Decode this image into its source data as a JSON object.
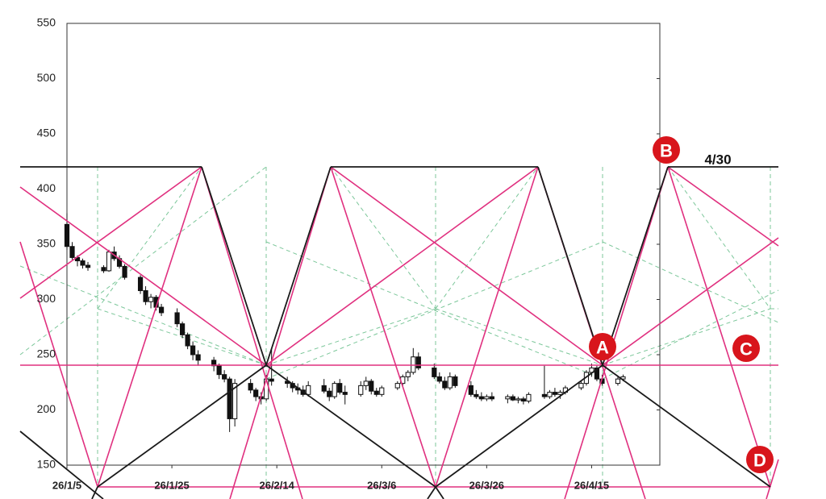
{
  "chart_data": {
    "type": "candlestick",
    "x": [
      "26/1/5",
      "26/1/6",
      "26/1/7",
      "26/1/8",
      "26/1/9",
      "26/1/12",
      "26/1/13",
      "26/1/14",
      "26/1/15",
      "26/1/16",
      "26/1/19",
      "26/1/20",
      "26/1/21",
      "26/1/22",
      "26/1/23",
      "26/1/26",
      "26/1/27",
      "26/1/28",
      "26/1/29",
      "26/1/30",
      "26/2/2",
      "26/2/3",
      "26/2/4",
      "26/2/5",
      "26/2/6",
      "26/2/9",
      "26/2/10",
      "26/2/11",
      "26/2/12",
      "26/2/13",
      "26/2/16",
      "26/2/17",
      "26/2/18",
      "26/2/19",
      "26/2/20",
      "26/2/23",
      "26/2/24",
      "26/2/25",
      "26/2/26",
      "26/2/27",
      "26/3/2",
      "26/3/3",
      "26/3/4",
      "26/3/5",
      "26/3/6",
      "26/3/9",
      "26/3/10",
      "26/3/11",
      "26/3/12",
      "26/3/13",
      "26/3/16",
      "26/3/17",
      "26/3/18",
      "26/3/19",
      "26/3/20",
      "26/3/23",
      "26/3/24",
      "26/3/25",
      "26/3/26",
      "26/3/27",
      "26/3/30",
      "26/3/31",
      "26/4/1",
      "26/4/2",
      "26/4/3",
      "26/4/6",
      "26/4/7",
      "26/4/8",
      "26/4/9",
      "26/4/10",
      "26/4/13",
      "26/4/14",
      "26/4/15",
      "26/4/16",
      "26/4/17",
      "26/4/20",
      "26/4/21"
    ],
    "ohlc": [
      [
        368,
        378,
        345,
        348
      ],
      [
        348,
        352,
        336,
        338
      ],
      [
        338,
        340,
        330,
        335
      ],
      [
        335,
        337,
        328,
        331
      ],
      [
        331,
        334,
        326,
        329
      ],
      [
        329,
        331,
        324,
        326
      ],
      [
        326,
        345,
        325,
        343
      ],
      [
        343,
        348,
        335,
        337
      ],
      [
        337,
        340,
        328,
        330
      ],
      [
        330,
        332,
        318,
        320
      ],
      [
        320,
        322,
        305,
        308
      ],
      [
        308,
        312,
        295,
        298
      ],
      [
        298,
        305,
        292,
        302
      ],
      [
        302,
        304,
        290,
        293
      ],
      [
        293,
        296,
        285,
        288
      ],
      [
        288,
        292,
        275,
        278
      ],
      [
        278,
        280,
        265,
        268
      ],
      [
        268,
        270,
        255,
        258
      ],
      [
        258,
        262,
        245,
        250
      ],
      [
        250,
        254,
        240,
        245
      ],
      [
        245,
        248,
        235,
        240
      ],
      [
        240,
        242,
        228,
        232
      ],
      [
        232,
        236,
        225,
        228
      ],
      [
        228,
        230,
        180,
        192
      ],
      [
        192,
        228,
        185,
        224
      ],
      [
        224,
        228,
        215,
        218
      ],
      [
        218,
        220,
        208,
        212
      ],
      [
        212,
        216,
        205,
        210
      ],
      [
        210,
        232,
        208,
        228
      ],
      [
        228,
        255,
        222,
        226
      ],
      [
        226,
        230,
        220,
        224
      ],
      [
        224,
        226,
        216,
        220
      ],
      [
        220,
        224,
        214,
        218
      ],
      [
        218,
        222,
        212,
        214
      ],
      [
        214,
        226,
        212,
        222
      ],
      [
        222,
        228,
        215,
        217
      ],
      [
        217,
        220,
        208,
        212
      ],
      [
        212,
        226,
        210,
        224
      ],
      [
        224,
        228,
        214,
        216
      ],
      [
        216,
        222,
        205,
        214
      ],
      [
        214,
        226,
        212,
        222
      ],
      [
        222,
        230,
        218,
        226
      ],
      [
        226,
        228,
        214,
        217
      ],
      [
        217,
        220,
        212,
        214
      ],
      [
        214,
        222,
        212,
        220
      ],
      [
        220,
        226,
        218,
        224
      ],
      [
        224,
        232,
        222,
        230
      ],
      [
        230,
        236,
        226,
        234
      ],
      [
        234,
        256,
        232,
        248
      ],
      [
        248,
        252,
        236,
        238
      ],
      [
        238,
        242,
        228,
        230
      ],
      [
        230,
        234,
        224,
        226
      ],
      [
        226,
        230,
        218,
        220
      ],
      [
        220,
        234,
        218,
        230
      ],
      [
        230,
        232,
        220,
        222
      ],
      [
        222,
        226,
        212,
        214
      ],
      [
        214,
        218,
        210,
        212
      ],
      [
        212,
        216,
        208,
        210
      ],
      [
        210,
        214,
        208,
        212
      ],
      [
        212,
        216,
        208,
        210
      ],
      [
        210,
        214,
        206,
        212
      ],
      [
        212,
        214,
        208,
        209
      ],
      [
        209,
        212,
        206,
        210
      ],
      [
        210,
        212,
        205,
        208
      ],
      [
        208,
        216,
        206,
        214
      ],
      [
        214,
        240,
        210,
        212
      ],
      [
        212,
        218,
        210,
        216
      ],
      [
        216,
        220,
        212,
        214
      ],
      [
        214,
        218,
        210,
        216
      ],
      [
        216,
        222,
        214,
        220
      ],
      [
        220,
        226,
        218,
        224
      ],
      [
        224,
        236,
        222,
        234
      ],
      [
        234,
        242,
        230,
        238
      ],
      [
        238,
        240,
        226,
        228
      ],
      [
        228,
        232,
        222,
        224
      ],
      [
        224,
        230,
        222,
        228
      ],
      [
        228,
        232,
        226,
        230
      ]
    ],
    "up_color": "#ffffff",
    "down_color": "#111111",
    "xlim": [
      "26/1/5",
      "26/4/28"
    ],
    "xticks": [
      "26/1/5",
      "26/1/25",
      "26/2/14",
      "26/3/6",
      "26/3/26",
      "26/4/15"
    ],
    "ylim": [
      150,
      550
    ],
    "yticks": [
      150,
      200,
      250,
      300,
      350,
      400,
      450,
      500,
      550
    ],
    "markers": [
      "A",
      "B",
      "C",
      "D"
    ],
    "date_label": "4/30"
  }
}
